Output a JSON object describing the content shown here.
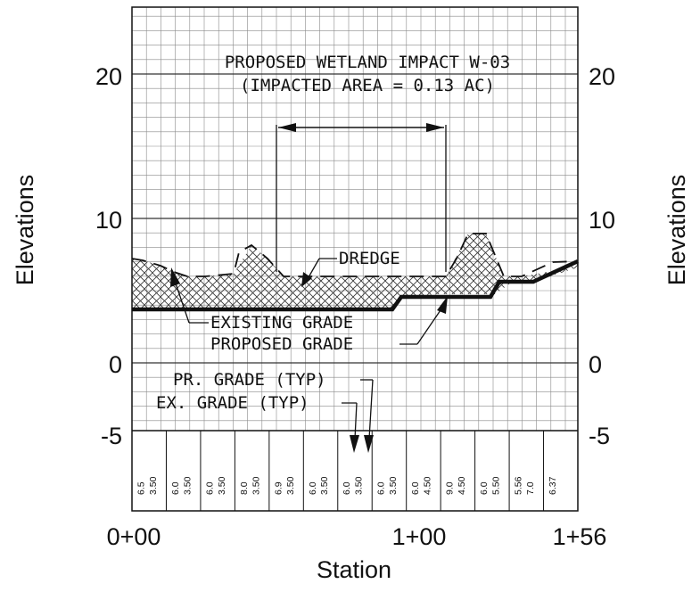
{
  "title_line1": "PROPOSED WETLAND IMPACT W-03",
  "title_line2": "(IMPACTED AREA = 0.13 AC)",
  "axes": {
    "y_label_left": "Elevations",
    "y_label_right": "Elevations",
    "x_label": "Station",
    "y_ticks": [
      "20",
      "10",
      "0",
      "-5"
    ],
    "x_ticks": [
      "0+00",
      "1+00",
      "1+56"
    ]
  },
  "callouts": {
    "dredge": "DREDGE",
    "existing_grade": "EXISTING GRADE",
    "proposed_grade": "PROPOSED GRADE",
    "pr_grade_typ": "PR. GRADE (TYP)",
    "ex_grade_typ": "EX. GRADE (TYP)"
  },
  "elevation_table": {
    "columns": [
      {
        "top": "6.5",
        "bottom": "3.50"
      },
      {
        "top": "6.0",
        "bottom": "3.50"
      },
      {
        "top": "6.0",
        "bottom": "3.50"
      },
      {
        "top": "8.0",
        "bottom": "3.50"
      },
      {
        "top": "6.9",
        "bottom": "3.50"
      },
      {
        "top": "6.0",
        "bottom": "3.50"
      },
      {
        "top": "6.0",
        "bottom": "3.50"
      },
      {
        "top": "6.0",
        "bottom": "3.50"
      },
      {
        "top": "6.0",
        "bottom": "4.50"
      },
      {
        "top": "9.0",
        "bottom": "4.50"
      },
      {
        "top": "6.0",
        "bottom": "5.50"
      },
      {
        "top": "5.56",
        "bottom": "7.0"
      },
      {
        "top": "6.37",
        "bottom": ""
      }
    ]
  },
  "colors": {
    "line": "#111111",
    "grid": "#8a8a8a",
    "background": "#ffffff"
  }
}
